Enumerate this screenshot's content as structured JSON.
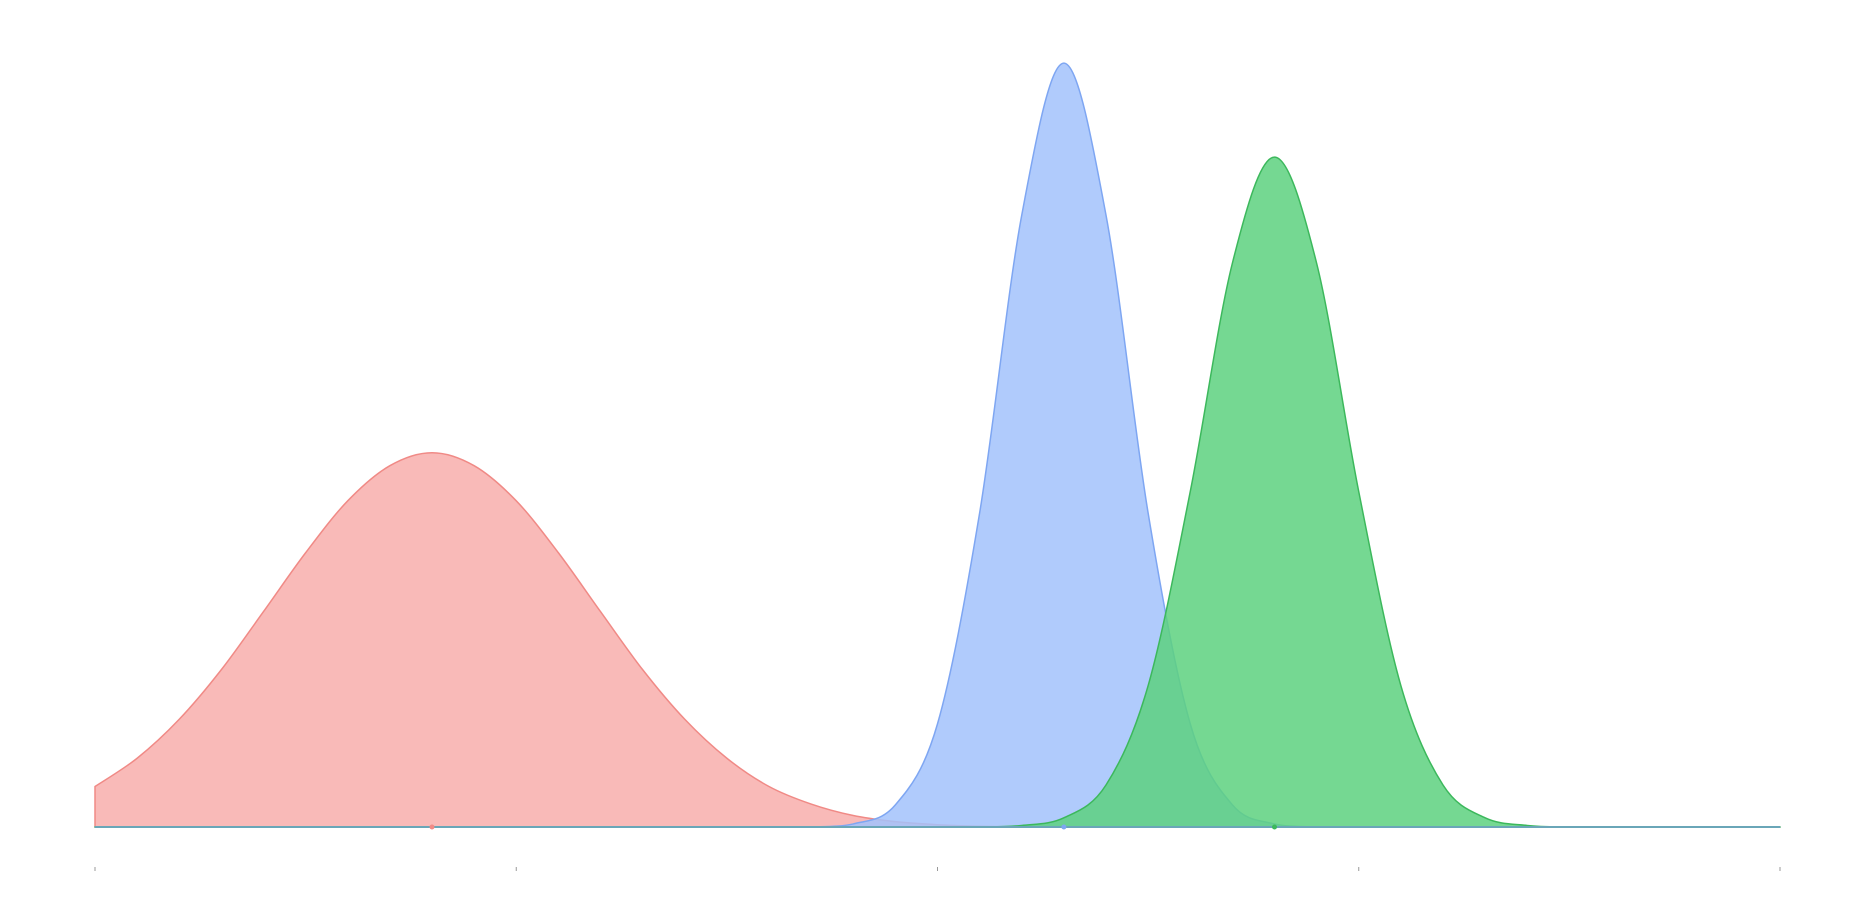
{
  "chart_data": {
    "type": "area",
    "x": [
      0,
      0.1,
      0.2,
      0.3,
      0.4,
      0.5,
      0.6,
      0.7,
      0.8,
      0.9,
      1,
      1.1,
      1.2,
      1.3,
      1.4,
      1.5,
      1.6,
      1.7,
      1.8,
      1.9,
      2,
      2.1,
      2.2,
      2.3,
      2.4,
      2.5,
      2.6,
      2.7,
      2.8,
      2.9,
      3,
      3.1,
      3.2,
      3.3,
      3.4,
      3.5,
      3.6,
      3.7,
      3.8,
      3.9,
      4
    ],
    "series": [
      {
        "color": "#f08a86",
        "fill": "#f8aeab",
        "mean": 0.8,
        "values": [
          0.053,
          0.09,
          0.141,
          0.206,
          0.282,
          0.359,
          0.427,
          0.473,
          0.49,
          0.473,
          0.427,
          0.359,
          0.282,
          0.206,
          0.141,
          0.09,
          0.053,
          0.03,
          0.015,
          0.007,
          0.003,
          0.001,
          0,
          0,
          0,
          0,
          0,
          0,
          0,
          0,
          0,
          0,
          0,
          0,
          0,
          0,
          0,
          0,
          0,
          0,
          0
        ]
      },
      {
        "color": "#7ea6f2",
        "fill": "#a2c2fb",
        "mean": 2.3,
        "values": [
          0,
          0,
          0,
          0,
          0,
          0,
          0,
          0,
          0,
          0,
          0,
          0,
          0,
          0,
          0,
          0,
          0,
          0,
          0.004,
          0.029,
          0.135,
          0.411,
          0.801,
          1,
          0.801,
          0.411,
          0.135,
          0.029,
          0.004,
          0,
          0,
          0,
          0,
          0,
          0,
          0,
          0,
          0,
          0,
          0,
          0
        ]
      },
      {
        "color": "#3cb85c",
        "fill": "#5dd17f",
        "mean": 2.8,
        "values": [
          0,
          0,
          0,
          0,
          0,
          0,
          0,
          0,
          0,
          0,
          0,
          0,
          0,
          0,
          0,
          0,
          0,
          0,
          0,
          0,
          0,
          0,
          0.002,
          0.012,
          0.055,
          0.185,
          0.439,
          0.738,
          0.877,
          0.738,
          0.439,
          0.185,
          0.055,
          0.012,
          0.002,
          0,
          0,
          0,
          0,
          0,
          0
        ]
      }
    ],
    "xlim": [
      0,
      4
    ],
    "xticks": [
      0,
      1,
      2,
      3,
      4
    ],
    "ylim": [
      0,
      1.08
    ]
  }
}
